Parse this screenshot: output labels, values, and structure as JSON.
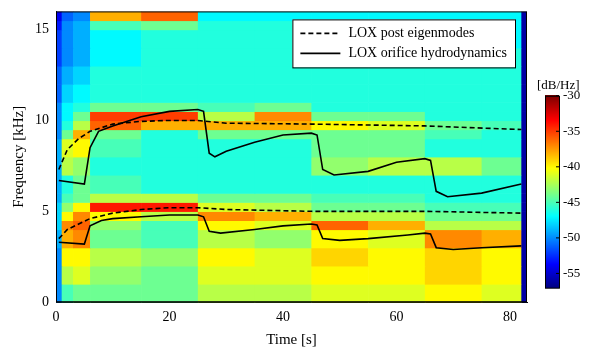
{
  "chart_data": {
    "type": "line",
    "x_label": "Time [s]",
    "y_label": "Frequency [kHz]",
    "xlim": [
      0,
      83
    ],
    "ylim": [
      0,
      16
    ],
    "xticks": [
      0,
      20,
      40,
      60,
      80
    ],
    "yticks": [
      0,
      5,
      10,
      15
    ],
    "grid": false,
    "legend": "upper right",
    "series": [
      {
        "name": "LOX post eigenmodes",
        "color": "#000000",
        "line_style": "dashed",
        "x": [
          0.5,
          2,
          4,
          6,
          10,
          15,
          20,
          25,
          30,
          45,
          65,
          82,
          82,
          0.5,
          2,
          4,
          6,
          10,
          15,
          20,
          25,
          30,
          45,
          65,
          82
        ],
        "values": [
          3.5,
          4.0,
          4.3,
          4.6,
          4.9,
          5.1,
          5.2,
          5.2,
          5.1,
          5.0,
          5.0,
          4.9,
          null,
          7.3,
          8.4,
          9.0,
          9.4,
          9.8,
          9.95,
          10.0,
          10.0,
          9.85,
          9.8,
          9.7,
          9.5
        ]
      },
      {
        "name": "LOX orifice hydrodynamics",
        "color": "#000000",
        "line_style": "solid",
        "x": [
          0.5,
          5,
          6,
          8,
          10,
          15,
          20,
          25,
          26,
          27,
          29,
          35,
          40,
          45,
          46,
          47,
          50,
          55,
          62,
          65,
          66,
          67,
          70,
          75,
          82,
          82,
          0.5,
          5,
          6,
          7.5,
          10,
          15,
          20,
          25,
          26,
          27,
          28,
          30,
          35,
          40,
          45,
          46,
          47,
          49,
          55,
          60,
          65,
          66,
          67,
          69,
          75,
          82
        ],
        "values": [
          3.3,
          3.2,
          4.2,
          4.5,
          4.6,
          4.7,
          4.8,
          4.8,
          4.7,
          3.9,
          3.8,
          4.0,
          4.2,
          4.3,
          4.25,
          3.5,
          3.4,
          3.5,
          3.7,
          3.8,
          3.75,
          3.0,
          2.9,
          3.0,
          3.1,
          null,
          6.7,
          6.5,
          8.5,
          9.4,
          9.7,
          10.2,
          10.5,
          10.6,
          10.5,
          8.2,
          8.0,
          8.3,
          8.8,
          9.2,
          9.3,
          9.2,
          7.3,
          7.0,
          7.2,
          7.7,
          7.9,
          7.8,
          6.1,
          5.8,
          6.0,
          6.5
        ]
      }
    ],
    "heatmap": {
      "label": "[dB/Hz]",
      "range": [
        -57,
        -30
      ],
      "ticks": [
        -55,
        -50,
        -45,
        -40,
        -35,
        -30
      ],
      "x_edges": [
        0,
        1,
        3,
        6,
        15,
        25,
        35,
        45,
        55,
        65,
        75,
        82,
        83
      ],
      "y_edges": [
        0,
        1,
        2,
        3,
        4,
        4.5,
        5,
        5.5,
        6,
        7,
        8,
        9,
        9.5,
        10,
        10.5,
        11,
        12,
        13,
        14,
        15,
        15.5,
        16
      ],
      "values": [
        [
          -50,
          -45,
          -44,
          -44,
          -44,
          -42,
          -42,
          -41,
          -41,
          -40,
          -41,
          -56
        ],
        [
          -50,
          -42,
          -41,
          -43,
          -44,
          -41,
          -41,
          -40,
          -40,
          -39,
          -40,
          -56
        ],
        [
          -50,
          -40,
          -40,
          -42,
          -43,
          -40,
          -41,
          -39,
          -40,
          -39,
          -40,
          -56
        ],
        [
          -49,
          -38,
          -37,
          -44,
          -45,
          -42,
          -43,
          -40,
          -41,
          -37,
          -38,
          -56
        ],
        [
          -48,
          -37,
          -36,
          -43,
          -45,
          -40,
          -41,
          -36,
          -38,
          -42,
          -42,
          -56
        ],
        [
          -48,
          -40,
          -37,
          -40,
          -42,
          -37,
          -38,
          -42,
          -42,
          -44,
          -44,
          -56
        ],
        [
          -48,
          -43,
          -40,
          -34,
          -34,
          -41,
          -42,
          -44,
          -44,
          -45,
          -45,
          -56
        ],
        [
          -49,
          -45,
          -44,
          -42,
          -42,
          -44,
          -44,
          -45,
          -45,
          -46,
          -46,
          -56
        ],
        [
          -49,
          -46,
          -44,
          -45,
          -46,
          -46,
          -46,
          -46,
          -46,
          -46,
          -46,
          -56
        ],
        [
          -49,
          -42,
          -43,
          -46,
          -46,
          -46,
          -46,
          -43,
          -42,
          -42,
          -44,
          -56
        ],
        [
          -49,
          -41,
          -40,
          -45,
          -46,
          -46,
          -46,
          -44,
          -44,
          -46,
          -46,
          -56
        ],
        [
          -50,
          -44,
          -38,
          -44,
          -46,
          -44,
          -44,
          -44,
          -44,
          -45,
          -46,
          -56
        ],
        [
          -50,
          -46,
          -42,
          -36,
          -38,
          -38,
          -38,
          -40,
          -41,
          -44,
          -45,
          -56
        ],
        [
          -50,
          -47,
          -44,
          -35,
          -35,
          -42,
          -37,
          -44,
          -44,
          -46,
          -46,
          -56
        ],
        [
          -50,
          -47,
          -46,
          -44,
          -44,
          -45,
          -44,
          -46,
          -46,
          -46,
          -46,
          -56
        ],
        [
          -51,
          -48,
          -47,
          -46,
          -46,
          -46,
          -46,
          -46,
          -46,
          -46,
          -46,
          -56
        ],
        [
          -51,
          -49,
          -48,
          -46,
          -46,
          -46,
          -46,
          -46,
          -46,
          -46,
          -46,
          -56
        ],
        [
          -52,
          -50,
          -49,
          -47,
          -46,
          -46,
          -46,
          -46,
          -46,
          -46,
          -46,
          -56
        ],
        [
          -52,
          -50,
          -49,
          -47,
          -46,
          -46,
          -46,
          -46,
          -46,
          -46,
          -47,
          -56
        ],
        [
          -53,
          -50,
          -49,
          -45,
          -44,
          -46,
          -46,
          -46,
          -46,
          -47,
          -47,
          -56
        ],
        [
          -54,
          -51,
          -50,
          -38,
          -36,
          -47,
          -47,
          -47,
          -47,
          -47,
          -47,
          -56
        ]
      ]
    }
  }
}
